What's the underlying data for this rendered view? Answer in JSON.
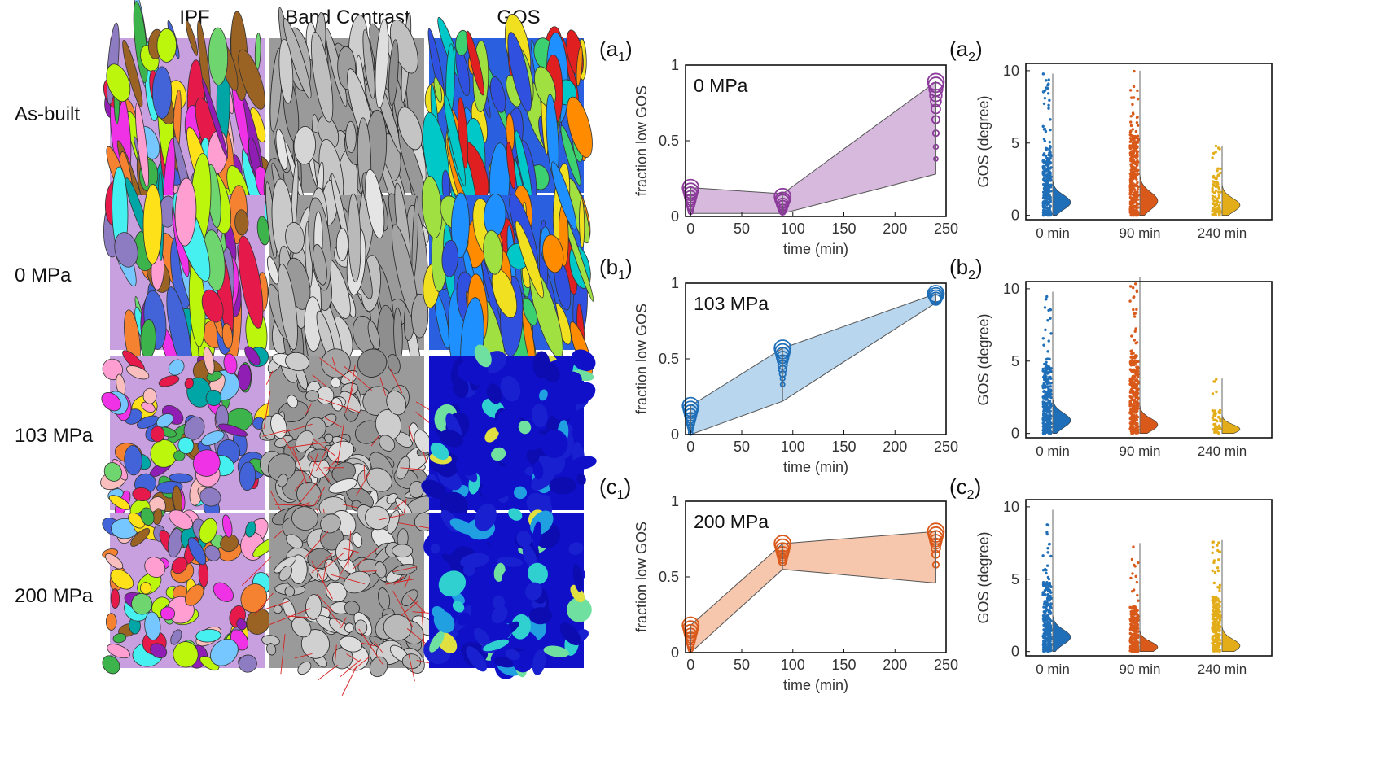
{
  "columns": [
    "IPF",
    "Band Contrast",
    "GOS"
  ],
  "rows": [
    "As-built",
    "0 MPa",
    "103 MPa",
    "200 MPa"
  ],
  "colors": {
    "purple": "#8b3a9a",
    "purple_fill": "#d7b9de",
    "blue": "#1f6fb8",
    "blue_fill": "#b8d6ee",
    "orange": "#d9591a",
    "orange_fill": "#f6c6ad",
    "gold": "#e3ad1a"
  },
  "panel_labels": {
    "a1": {
      "main": "(a",
      "sub": "1",
      "close": ")"
    },
    "a2": {
      "main": "(a",
      "sub": "2",
      "close": ")"
    },
    "b1": {
      "main": "(b",
      "sub": "1",
      "close": ")"
    },
    "b2": {
      "main": "(b",
      "sub": "2",
      "close": ")"
    },
    "c1": {
      "main": "(c",
      "sub": "1",
      "close": ")"
    },
    "c2": {
      "main": "(c",
      "sub": "2",
      "close": ")"
    }
  },
  "chart_data": [
    {
      "id": "a1",
      "type": "scatter",
      "annotation": "0 MPa",
      "xlabel": "time (min)",
      "ylabel": "fraction low GOS",
      "xlim": [
        -5,
        250
      ],
      "ylim": [
        0,
        1
      ],
      "xticks": [
        0,
        50,
        100,
        150,
        200,
        250
      ],
      "yticks": [
        0,
        0.5,
        1
      ],
      "color": "#8b3a9a",
      "fill": "#d7b9de",
      "x": [
        0,
        90,
        240
      ],
      "upper": [
        0.19,
        0.15,
        0.89
      ],
      "lower": [
        0.02,
        0.02,
        0.28
      ],
      "points": [
        [
          0.19,
          0.17,
          0.15,
          0.13,
          0.11,
          0.09,
          0.07,
          0.05,
          0.03
        ],
        [
          0.13,
          0.11,
          0.1,
          0.08,
          0.07,
          0.05,
          0.04,
          0.03
        ],
        [
          0.89,
          0.87,
          0.84,
          0.8,
          0.76,
          0.71,
          0.64,
          0.55,
          0.46,
          0.38
        ]
      ]
    },
    {
      "id": "b1",
      "type": "scatter",
      "annotation": "103 MPa",
      "xlabel": "time (min)",
      "ylabel": "fraction low GOS",
      "xlim": [
        -5,
        250
      ],
      "ylim": [
        0,
        1
      ],
      "xticks": [
        0,
        50,
        100,
        150,
        200,
        250
      ],
      "yticks": [
        0,
        0.5,
        1
      ],
      "color": "#1f6fb8",
      "fill": "#b8d6ee",
      "x": [
        0,
        90,
        240
      ],
      "upper": [
        0.19,
        0.57,
        0.93
      ],
      "lower": [
        0.0,
        0.22,
        0.87
      ],
      "points": [
        [
          0.19,
          0.17,
          0.15,
          0.13,
          0.11,
          0.09,
          0.07,
          0.05,
          0.03,
          0.01
        ],
        [
          0.57,
          0.55,
          0.53,
          0.51,
          0.49,
          0.46,
          0.43,
          0.4,
          0.37,
          0.33
        ],
        [
          0.93,
          0.92,
          0.91,
          0.9,
          0.89
        ]
      ]
    },
    {
      "id": "c1",
      "type": "scatter",
      "annotation": "200 MPa",
      "xlabel": "time (min)",
      "ylabel": "fraction low GOS",
      "xlim": [
        -5,
        250
      ],
      "ylim": [
        0,
        1
      ],
      "xticks": [
        0,
        50,
        100,
        150,
        200,
        250
      ],
      "yticks": [
        0,
        0.5,
        1
      ],
      "color": "#d9591a",
      "fill": "#f6c6ad",
      "x": [
        0,
        90,
        240
      ],
      "upper": [
        0.18,
        0.72,
        0.8
      ],
      "lower": [
        0.0,
        0.55,
        0.46
      ],
      "points": [
        [
          0.18,
          0.16,
          0.14,
          0.12,
          0.1,
          0.08,
          0.06,
          0.04,
          0.02
        ],
        [
          0.72,
          0.7,
          0.68,
          0.66,
          0.64,
          0.62,
          0.6
        ],
        [
          0.8,
          0.78,
          0.76,
          0.74,
          0.72,
          0.69,
          0.65,
          0.58
        ]
      ]
    },
    {
      "id": "a2",
      "type": "scatter",
      "ylabel": "GOS (degree)",
      "ylim": [
        -0.3,
        10.5
      ],
      "yticks": [
        0,
        5,
        10
      ],
      "categories": [
        "0 min",
        "90 min",
        "240 min"
      ],
      "colors": [
        "#1f6fb8",
        "#d9591a",
        "#e3ad1a"
      ],
      "max": [
        9.8,
        10.0,
        4.8
      ],
      "dense_top": [
        4.8,
        5.6,
        2.8
      ],
      "peak": [
        0.9,
        1.0,
        0.7
      ],
      "peak_width": [
        1.6,
        1.9,
        1.5
      ],
      "count": [
        260,
        300,
        90
      ]
    },
    {
      "id": "b2",
      "type": "scatter",
      "ylabel": "GOS (degree)",
      "ylim": [
        -0.3,
        10.5
      ],
      "yticks": [
        0,
        5,
        10
      ],
      "categories": [
        "0 min",
        "90 min",
        "240 min"
      ],
      "colors": [
        "#1f6fb8",
        "#d9591a",
        "#e3ad1a"
      ],
      "max": [
        9.8,
        10.8,
        3.8
      ],
      "dense_top": [
        4.8,
        5.4,
        1.6
      ],
      "peak": [
        0.9,
        0.6,
        0.3
      ],
      "peak_width": [
        1.6,
        1.4,
        1.0
      ],
      "count": [
        260,
        300,
        50
      ]
    },
    {
      "id": "c2",
      "type": "scatter",
      "ylabel": "GOS (degree)",
      "ylim": [
        -0.3,
        10.5
      ],
      "yticks": [
        0,
        5,
        10
      ],
      "categories": [
        "0 min",
        "90 min",
        "240 min"
      ],
      "colors": [
        "#1f6fb8",
        "#d9591a",
        "#e3ad1a"
      ],
      "max": [
        9.8,
        7.5,
        7.7
      ],
      "dense_top": [
        4.8,
        3.2,
        3.8
      ],
      "peak": [
        1.0,
        0.3,
        0.4
      ],
      "peak_width": [
        1.6,
        1.2,
        1.4
      ],
      "count": [
        260,
        220,
        230
      ]
    }
  ]
}
